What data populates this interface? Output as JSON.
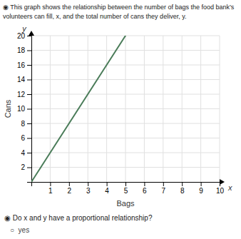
{
  "chart_data": {
    "type": "line",
    "title": "◉ This graph shows the relationship between the number of bags the food bank’s",
    "subtitle": "volunteers can fill, x, and the total number of cans they deliver, y.",
    "x_label": "Bags",
    "y_label": "Cans",
    "x": [
      0,
      5
    ],
    "values": [
      0,
      20
    ],
    "color": "#4a7c59",
    "xlim": [
      0,
      10
    ],
    "ylim": [
      0,
      20
    ],
    "xticks": [
      1,
      2,
      3,
      4,
      5,
      6,
      7,
      8,
      9,
      10
    ],
    "yticks": [
      2,
      4,
      6,
      8,
      10,
      12,
      14,
      16,
      18,
      20
    ],
    "grid": true,
    "annotations": [
      "y",
      "x",
      "◉ Do x and y have a proportional relationship?",
      "○  yes"
    ]
  }
}
